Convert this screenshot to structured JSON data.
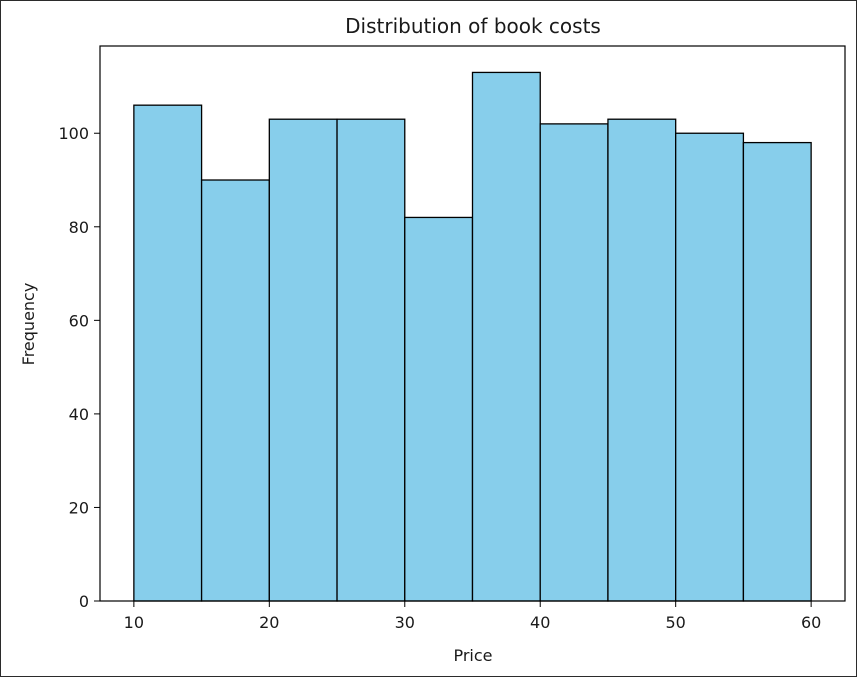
{
  "chart_data": {
    "type": "bar",
    "title": "Distribution of book costs",
    "xlabel": "Price",
    "ylabel": "Frequency",
    "bins": [
      {
        "start": 10,
        "end": 15,
        "count": 106
      },
      {
        "start": 15,
        "end": 20,
        "count": 90
      },
      {
        "start": 20,
        "end": 25,
        "count": 103
      },
      {
        "start": 25,
        "end": 30,
        "count": 103
      },
      {
        "start": 30,
        "end": 35,
        "count": 82
      },
      {
        "start": 35,
        "end": 40,
        "count": 113
      },
      {
        "start": 40,
        "end": 45,
        "count": 102
      },
      {
        "start": 45,
        "end": 50,
        "count": 103
      },
      {
        "start": 50,
        "end": 55,
        "count": 100
      },
      {
        "start": 55,
        "end": 60,
        "count": 98
      }
    ],
    "xticks": [
      10,
      20,
      30,
      40,
      50,
      60
    ],
    "yticks": [
      0,
      20,
      40,
      60,
      80,
      100
    ],
    "xlim": [
      7.5,
      62.5
    ],
    "ylim": [
      0,
      118.65
    ],
    "grid": false,
    "legend": "none",
    "colors": {
      "bar_fill": "#87CEEB",
      "bar_edge": "#000000",
      "axis": "#000000"
    }
  }
}
